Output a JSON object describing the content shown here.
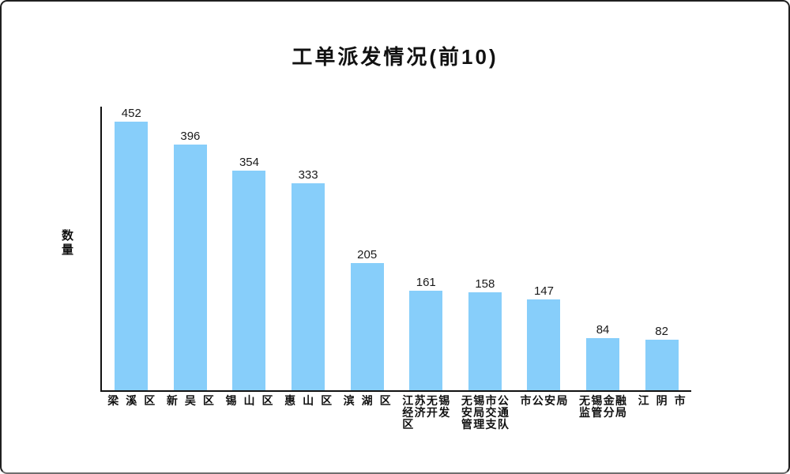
{
  "chart_data": {
    "type": "bar",
    "title": "工单派发情况(前10)",
    "xlabel": "",
    "ylabel": "数量",
    "categories": [
      "梁溪区",
      "新吴区",
      "锡山区",
      "惠山区",
      "滨湖区",
      "江苏无锡经济开发区",
      "无锡市公安局交通管理支队",
      "市公安局",
      "无锡金融监管分局",
      "江阴市"
    ],
    "category_labels_wrapped": [
      "梁溪区",
      "新吴区",
      "锡山区",
      "惠山区",
      "滨湖区",
      "江苏无锡\n经济开发\n区",
      "无锡市公\n安局交通\n管理支队",
      "市公安局",
      "无锡金融\n监管分局",
      "江阴市"
    ],
    "values": [
      452,
      396,
      354,
      333,
      205,
      161,
      158,
      147,
      84,
      82
    ],
    "value_labels_shown": true,
    "ylim": [
      0,
      460
    ],
    "grid": false,
    "legend": false,
    "bar_color": "#87CEFA",
    "axis_color": "#111111",
    "text_color": "#111111"
  }
}
